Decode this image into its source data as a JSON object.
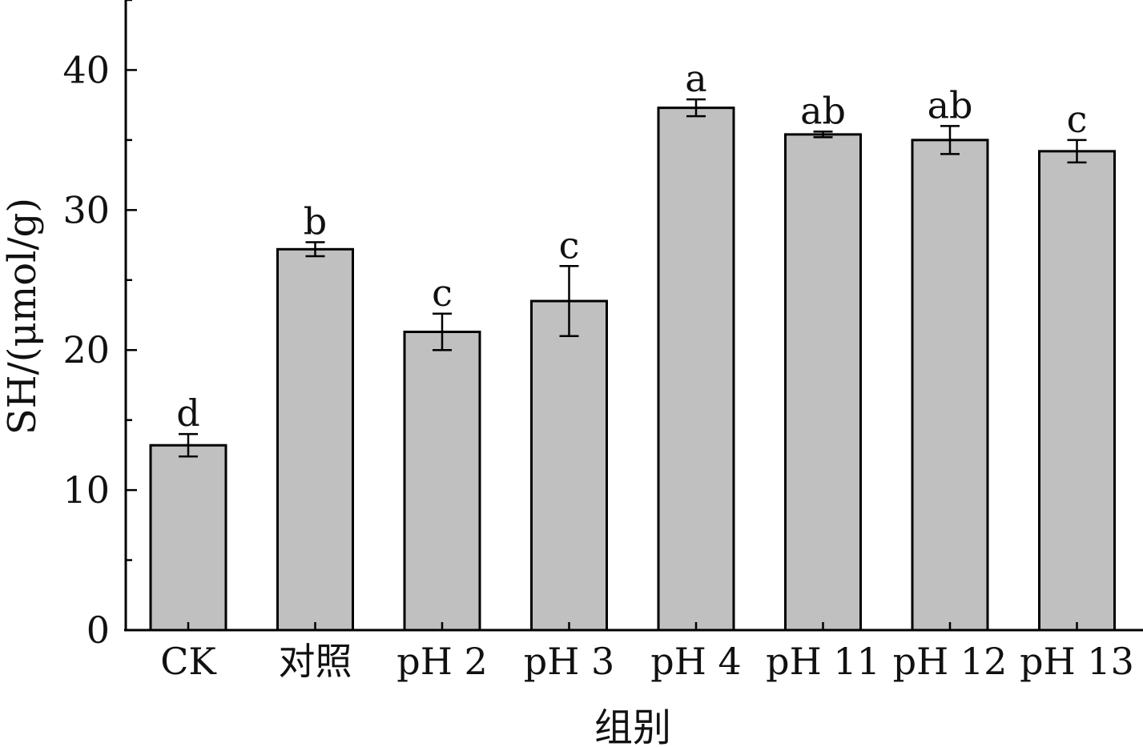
{
  "chart_data": {
    "type": "bar",
    "xlabel": "组别",
    "ylabel": "SH/(μmol/g)",
    "ylim": [
      0,
      45
    ],
    "yticks": [
      0,
      10,
      20,
      30,
      40
    ],
    "grid": false,
    "categories": [
      "CK",
      "对照",
      "pH 2",
      "pH 3",
      "pH 4",
      "pH 11",
      "pH 12",
      "pH 13"
    ],
    "values": [
      13.2,
      27.2,
      21.3,
      23.5,
      37.3,
      35.4,
      35.0,
      34.2
    ],
    "errors": [
      0.8,
      0.5,
      1.3,
      2.5,
      0.6,
      0.2,
      1.0,
      0.8
    ],
    "significance": [
      "d",
      "b",
      "c",
      "c",
      "a",
      "ab",
      "ab",
      "c"
    ],
    "colors": {
      "bar_fill": "#c0c0c0",
      "bar_stroke": "#000000"
    }
  }
}
